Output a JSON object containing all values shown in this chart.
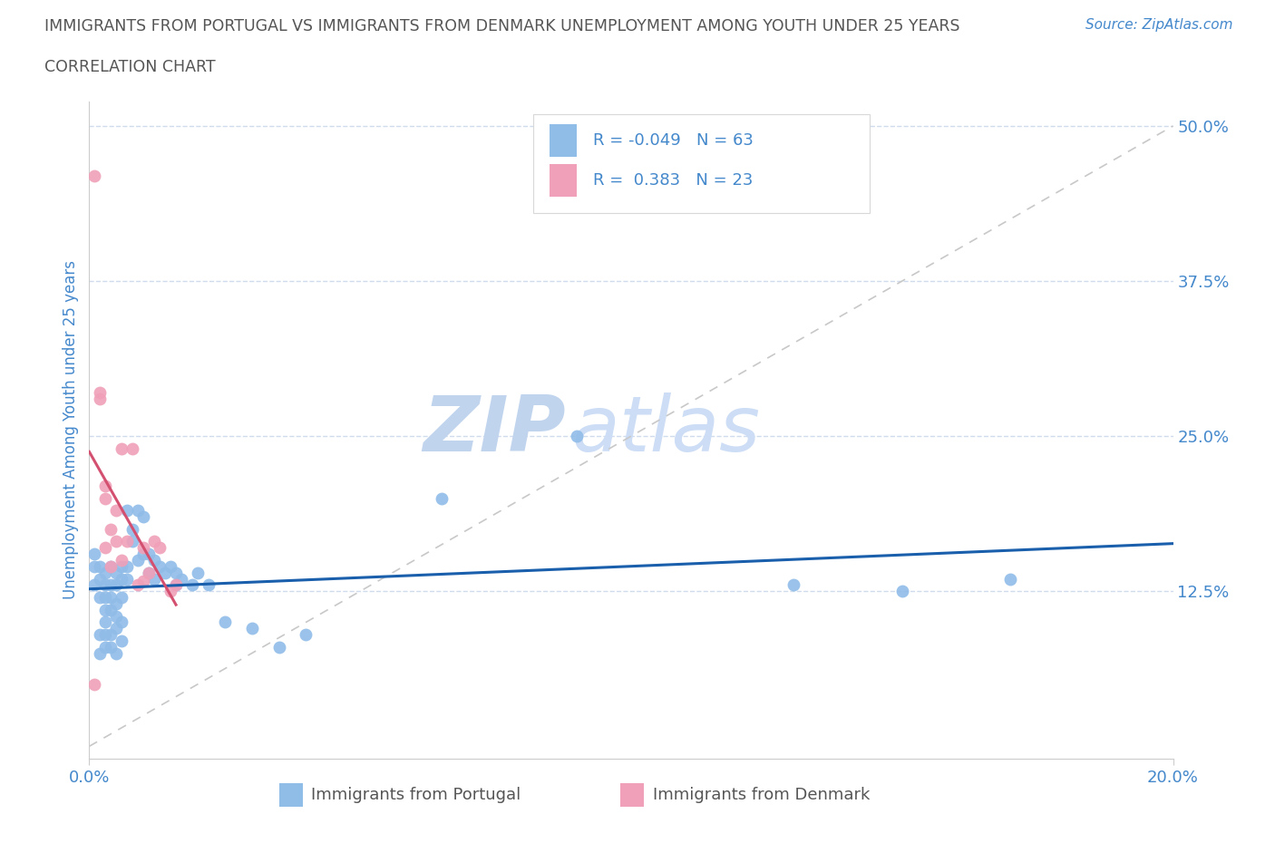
{
  "title_line1": "IMMIGRANTS FROM PORTUGAL VS IMMIGRANTS FROM DENMARK UNEMPLOYMENT AMONG YOUTH UNDER 25 YEARS",
  "title_line2": "CORRELATION CHART",
  "source_text": "Source: ZipAtlas.com",
  "ylabel": "Unemployment Among Youth under 25 years",
  "legend_label1": "Immigrants from Portugal",
  "legend_label2": "Immigrants from Denmark",
  "R1": -0.049,
  "N1": 63,
  "R2": 0.383,
  "N2": 23,
  "xlim": [
    0.0,
    0.2
  ],
  "ylim": [
    -0.01,
    0.52
  ],
  "color_blue": "#90bce8",
  "color_pink": "#f0a0b8",
  "color_blue_line": "#1a5fac",
  "color_pink_line": "#d45070",
  "color_diag": "#c8c8c8",
  "title_color": "#555555",
  "axis_color": "#4488cc",
  "watermark_zip_color": "#c0d4ee",
  "watermark_atlas_color": "#ccddf5",
  "background_color": "#ffffff",
  "grid_color": "#d0dced",
  "portugal_x": [
    0.001,
    0.001,
    0.001,
    0.002,
    0.002,
    0.002,
    0.002,
    0.002,
    0.003,
    0.003,
    0.003,
    0.003,
    0.003,
    0.003,
    0.003,
    0.004,
    0.004,
    0.004,
    0.004,
    0.004,
    0.004,
    0.005,
    0.005,
    0.005,
    0.005,
    0.005,
    0.005,
    0.006,
    0.006,
    0.006,
    0.006,
    0.006,
    0.007,
    0.007,
    0.007,
    0.008,
    0.008,
    0.009,
    0.009,
    0.01,
    0.01,
    0.011,
    0.011,
    0.012,
    0.012,
    0.013,
    0.014,
    0.015,
    0.016,
    0.016,
    0.017,
    0.019,
    0.02,
    0.022,
    0.025,
    0.03,
    0.035,
    0.04,
    0.065,
    0.09,
    0.13,
    0.15,
    0.17
  ],
  "portugal_y": [
    0.145,
    0.155,
    0.13,
    0.135,
    0.145,
    0.12,
    0.09,
    0.075,
    0.14,
    0.13,
    0.12,
    0.11,
    0.1,
    0.09,
    0.08,
    0.145,
    0.13,
    0.12,
    0.11,
    0.09,
    0.08,
    0.14,
    0.13,
    0.115,
    0.105,
    0.095,
    0.075,
    0.145,
    0.135,
    0.12,
    0.1,
    0.085,
    0.145,
    0.135,
    0.19,
    0.165,
    0.175,
    0.15,
    0.19,
    0.155,
    0.185,
    0.155,
    0.14,
    0.15,
    0.135,
    0.145,
    0.14,
    0.145,
    0.14,
    0.13,
    0.135,
    0.13,
    0.14,
    0.13,
    0.1,
    0.095,
    0.08,
    0.09,
    0.2,
    0.25,
    0.13,
    0.125,
    0.135
  ],
  "denmark_x": [
    0.001,
    0.001,
    0.002,
    0.002,
    0.003,
    0.003,
    0.003,
    0.004,
    0.004,
    0.005,
    0.005,
    0.006,
    0.006,
    0.007,
    0.008,
    0.009,
    0.01,
    0.01,
    0.011,
    0.012,
    0.013,
    0.015,
    0.016
  ],
  "denmark_y": [
    0.46,
    0.05,
    0.28,
    0.285,
    0.2,
    0.21,
    0.16,
    0.175,
    0.145,
    0.19,
    0.165,
    0.15,
    0.24,
    0.165,
    0.24,
    0.13,
    0.133,
    0.16,
    0.14,
    0.165,
    0.16,
    0.125,
    0.13
  ]
}
